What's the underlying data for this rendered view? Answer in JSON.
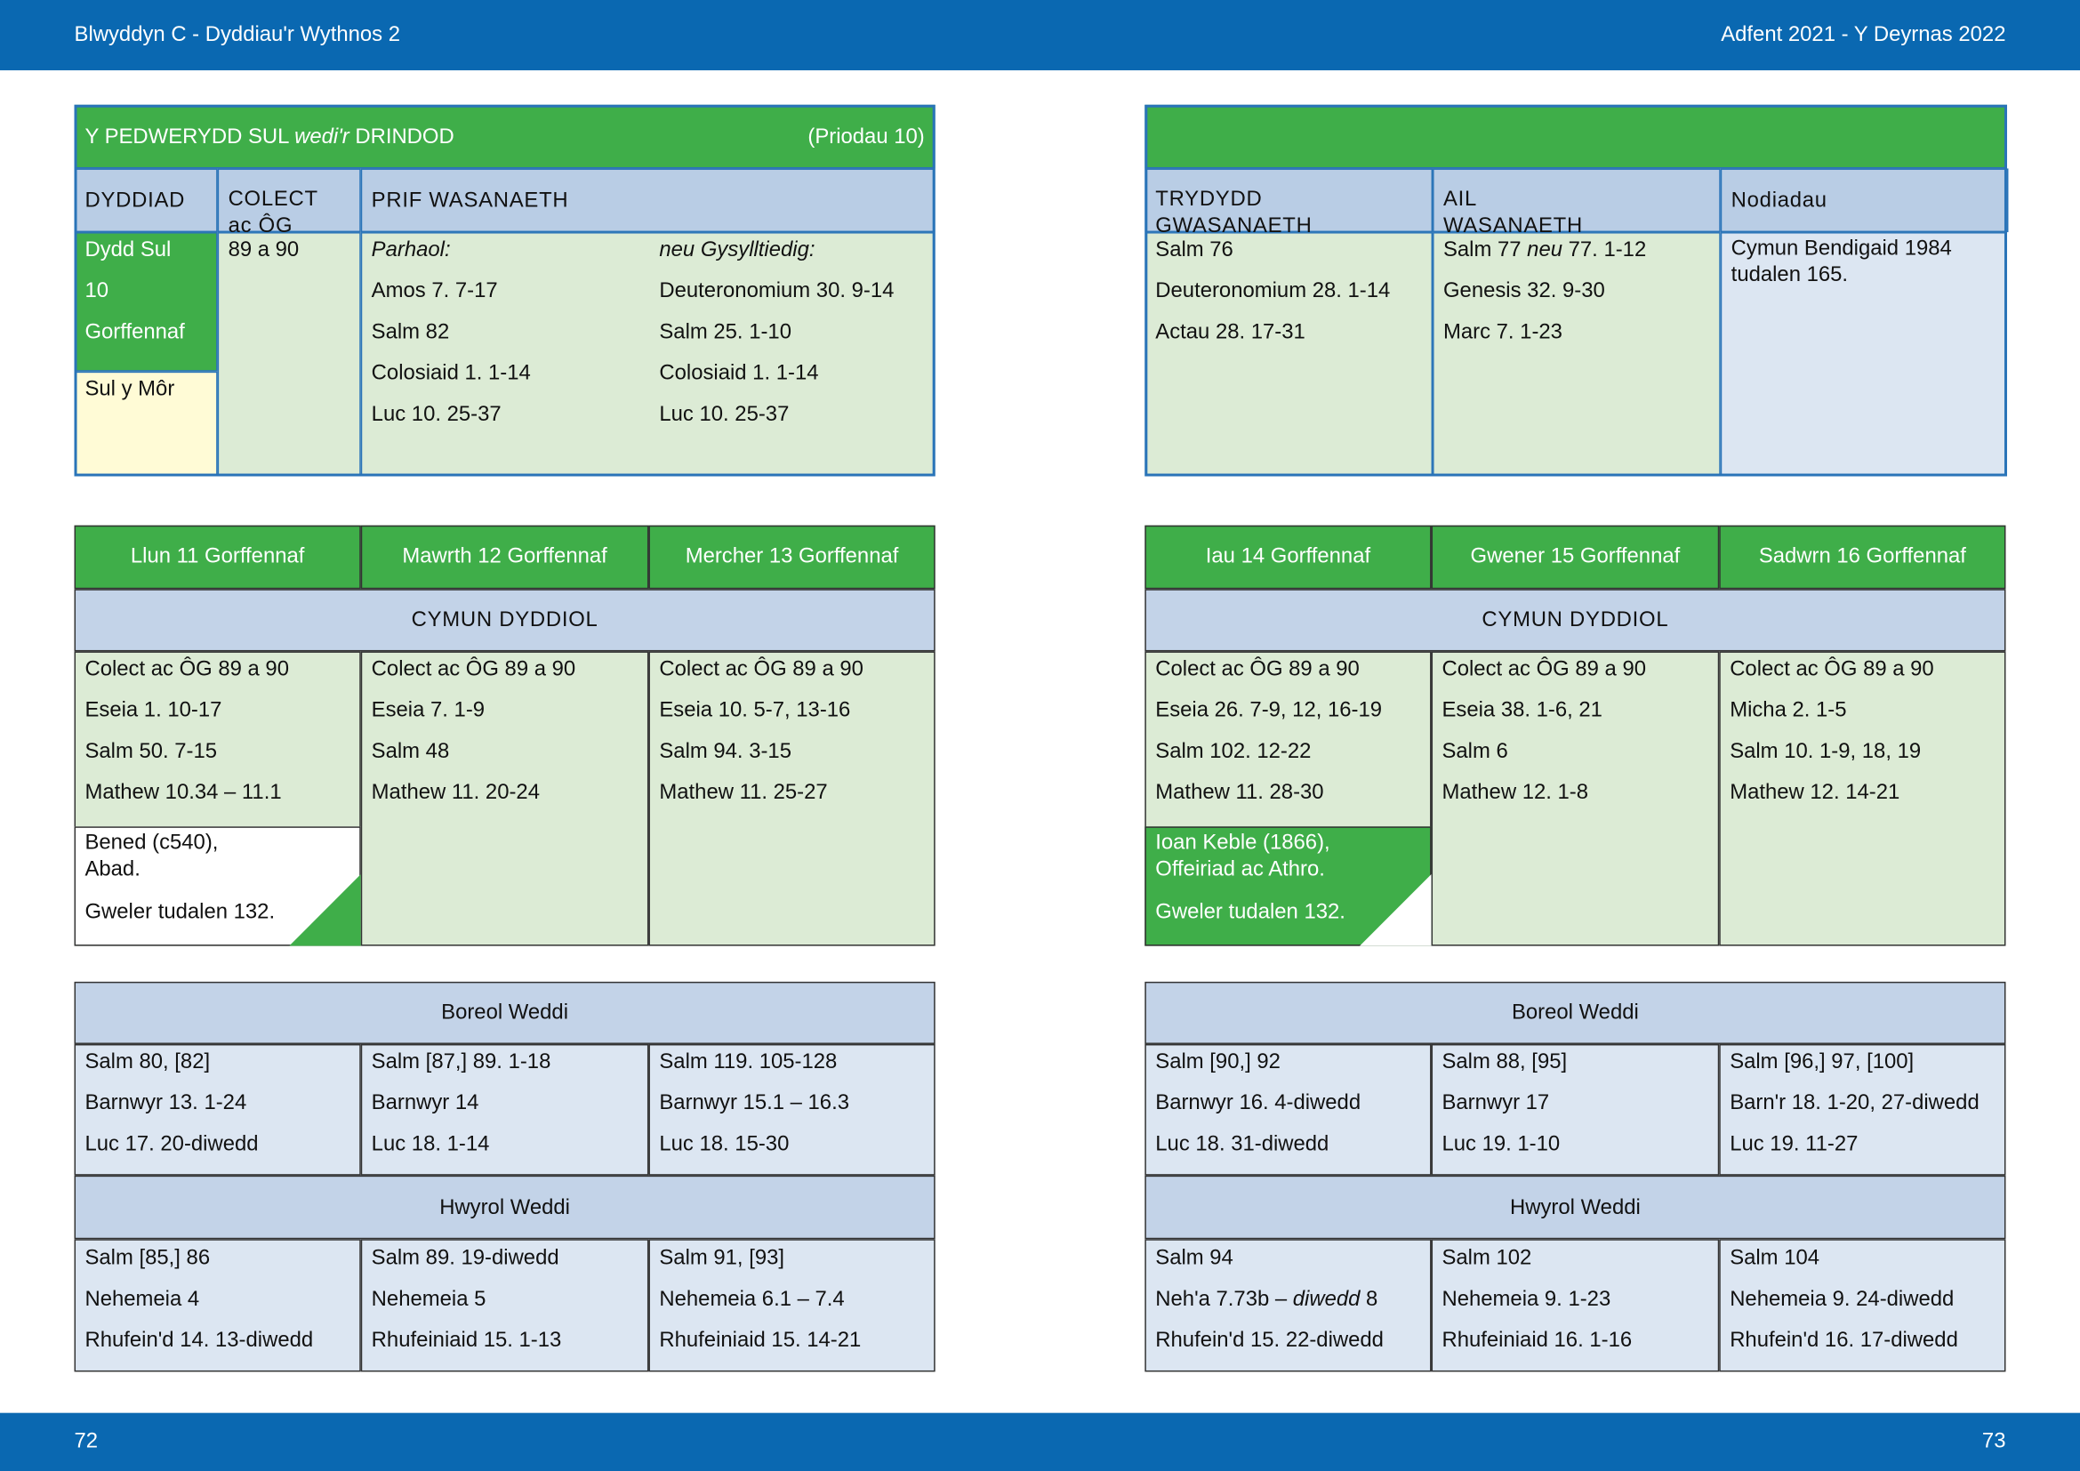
{
  "header": {
    "left": "Blwyddyn  C - Dyddiau'r Wythnos 2",
    "right": "Adfent 2021 - Y Deyrnas 2022"
  },
  "footer": {
    "left": "72",
    "right": "73"
  },
  "sunday": {
    "title": [
      "Y PEDWERYDD SUL ",
      "wedi'r",
      " DRINDOD"
    ],
    "ref": "(Priodau 10)",
    "headers": [
      "DYDDIAD",
      [
        "COLECT",
        "ac ÔG"
      ],
      "PRIF WASANAETH"
    ],
    "date": [
      "Dydd Sul",
      "10",
      "Gorffennaf"
    ],
    "feast": "Sul y Môr",
    "collect": "89 a 90",
    "principal": [
      [
        "Parhaol:",
        "Amos 7. 7-17",
        "Salm 82",
        "Colosiaid 1. 1-14",
        "Luc 10. 25-37"
      ],
      [
        "neu Gysylltiedig:",
        "Deuteronomium 30. 9-14",
        "Salm 25. 1-10",
        "Colosiaid 1. 1-14",
        "Luc 10. 25-37"
      ]
    ]
  },
  "other_services": {
    "headers": [
      [
        "TRYDYDD",
        "GWASANAETH"
      ],
      [
        "AIL",
        "WASANAETH"
      ],
      "Nodiadau"
    ],
    "third": [
      "Salm 76",
      "Deuteronomium 28. 1-14",
      "Actau 28. 17-31"
    ],
    "second": [
      [
        "Salm 77 ",
        "neu",
        " 77. 1-12"
      ],
      "Genesis 32. 9-30",
      "Marc 7. 1-23"
    ],
    "notes": "Cymun Bendigaid 1984 tudalen 165."
  },
  "weeks": [
    {
      "days": [
        "Llun 11 Gorffennaf",
        "Mawrth 12 Gorffennaf",
        "Mercher 13 Gorffennaf"
      ],
      "communion_label": "CYMUN DYDDIOL",
      "readings": [
        [
          "Colect ac ÔG 89 a 90",
          "Eseia 1. 10-17",
          "Salm 50. 7-15",
          "Mathew 10.34 – 11.1"
        ],
        [
          "Colect ac ÔG 89 a 90",
          "Eseia 7. 1-9",
          "Salm 48",
          "Mathew 11. 20-24"
        ],
        [
          "Colect ac ÔG 89 a 90",
          "Eseia 10. 5-7, 13-16",
          "Salm 94. 3-15",
          "Mathew 11. 25-27"
        ]
      ],
      "commemoration": {
        "name": [
          "Bened (c540),",
          "Abad."
        ],
        "see": "Gweler tudalen 132."
      },
      "morning_label": "Boreol Weddi",
      "morning": [
        [
          "Salm 80, [82]",
          "Barnwyr 13. 1-24",
          "Luc 17. 20-diwedd"
        ],
        [
          "Salm [87,] 89. 1-18",
          "Barnwyr 14",
          "Luc 18. 1-14"
        ],
        [
          "Salm 119. 105-128",
          "Barnwyr 15.1 – 16.3",
          "Luc 18. 15-30"
        ]
      ],
      "evening_label": "Hwyrol Weddi",
      "evening": [
        [
          "Salm [85,] 86",
          "Nehemeia 4",
          "Rhufein'd 14. 13-diwedd"
        ],
        [
          "Salm 89. 19-diwedd",
          "Nehemeia 5",
          "Rhufeiniaid 15. 1-13"
        ],
        [
          "Salm 91, [93]",
          "Nehemeia 6.1 – 7.4",
          "Rhufeiniaid 15. 14-21"
        ]
      ]
    },
    {
      "days": [
        "Iau 14 Gorffennaf",
        "Gwener 15 Gorffennaf",
        "Sadwrn 16 Gorffennaf"
      ],
      "communion_label": "CYMUN DYDDIOL",
      "readings": [
        [
          "Colect ac ÔG 89 a 90",
          "Eseia 26. 7-9, 12, 16-19",
          "Salm 102. 12-22",
          "Mathew 11. 28-30"
        ],
        [
          "Colect ac ÔG 89 a 90",
          "Eseia 38. 1-6, 21",
          "Salm 6",
          "Mathew 12. 1-8"
        ],
        [
          "Colect ac ÔG 89 a 90",
          "Micha 2. 1-5",
          "Salm 10. 1-9, 18, 19",
          "Mathew 12. 14-21"
        ]
      ],
      "commemoration": {
        "name": [
          "Ioan Keble (1866),",
          "Offeiriad ac Athro."
        ],
        "see": "Gweler tudalen 132."
      },
      "morning_label": "Boreol Weddi",
      "morning": [
        [
          "Salm [90,] 92",
          "Barnwyr 16. 4-diwedd",
          "Luc 18. 31-diwedd"
        ],
        [
          "Salm 88, [95]",
          "Barnwyr 17",
          "Luc 19. 1-10"
        ],
        [
          "Salm [96,] 97, [100]",
          "Barn'r 18. 1-20, 27-diwedd",
          "Luc 19. 11-27"
        ]
      ],
      "evening_label": "Hwyrol Weddi",
      "evening": [
        [
          "Salm 94",
          [
            "Neh'a 7.73b – ",
            "diwedd",
            " 8"
          ],
          "Rhufein'd 15. 22-diwedd"
        ],
        [
          "Salm 102",
          "Nehemeia 9. 1-23",
          "Rhufeiniaid 16. 1-16"
        ],
        [
          "Salm 104",
          "Nehemeia 9. 24-diwedd",
          "Rhufein'd 16. 17-diwedd"
        ]
      ]
    }
  ]
}
